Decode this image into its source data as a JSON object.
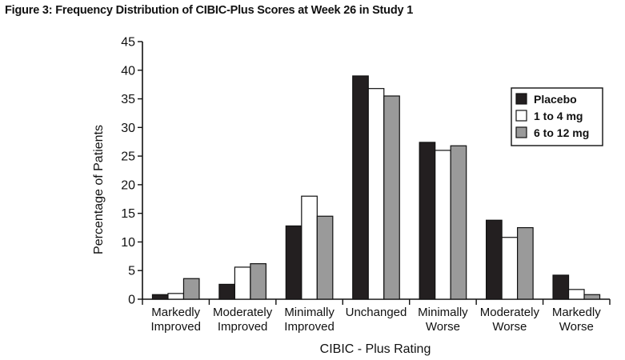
{
  "chart_data": {
    "type": "bar",
    "title": "Figure 3: Frequency Distribution of CIBIC-Plus Scores at Week 26 in Study 1",
    "xlabel": "CIBIC - Plus Rating",
    "ylabel": "Percentage of Patients",
    "ylim": [
      0,
      45
    ],
    "yticks": [
      0,
      5,
      10,
      15,
      20,
      25,
      30,
      35,
      40,
      45
    ],
    "categories": [
      [
        "Markedly",
        "Improved"
      ],
      [
        "Moderately",
        "Improved"
      ],
      [
        "Minimally",
        "Improved"
      ],
      [
        "Unchanged"
      ],
      [
        "Minimally",
        "Worse"
      ],
      [
        "Moderately",
        "Worse"
      ],
      [
        "Markedly",
        "Worse"
      ]
    ],
    "series": [
      {
        "name": "Placebo",
        "color": "#231f20",
        "values": [
          0.8,
          2.6,
          12.8,
          39.0,
          27.4,
          13.8,
          4.2
        ]
      },
      {
        "name": "1 to 4 mg",
        "color": "#ffffff",
        "values": [
          1.0,
          5.6,
          18.0,
          36.8,
          26.0,
          10.8,
          1.7
        ]
      },
      {
        "name": "6 to 12 mg",
        "color": "#9a9a9a",
        "values": [
          3.6,
          6.2,
          14.5,
          35.5,
          26.8,
          12.5,
          0.8
        ]
      }
    ],
    "legend_position": "right",
    "grid": false
  }
}
